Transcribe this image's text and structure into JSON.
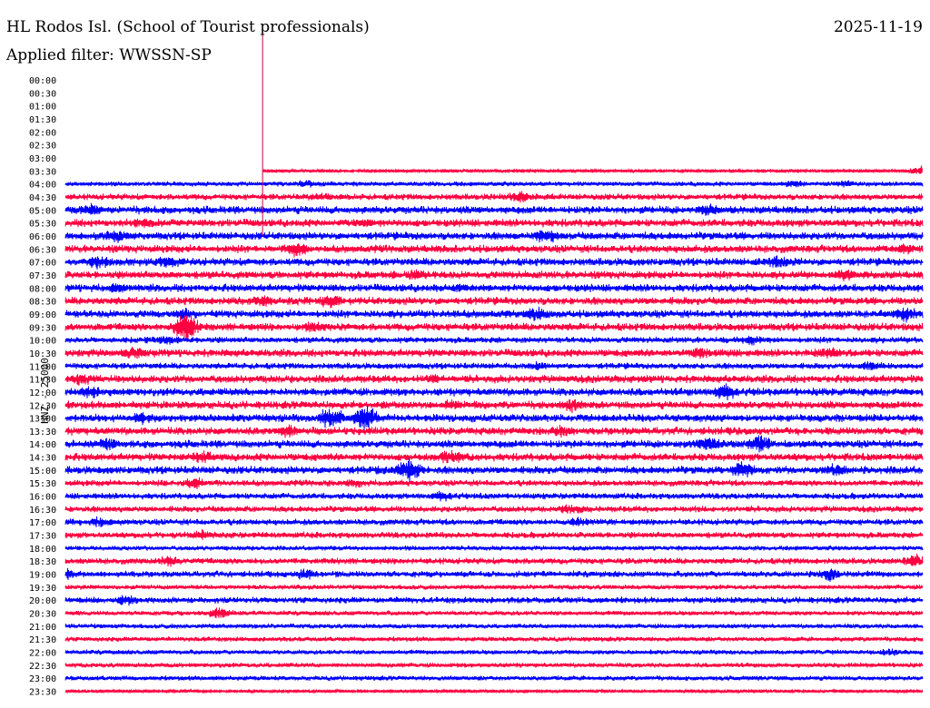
{
  "header": {
    "station": "HL Rodos Isl. (School of Tourist professionals)",
    "date": "2025-11-19",
    "filter": "Applied filter: WWSSN-SP"
  },
  "chart_data": {
    "type": "line",
    "title": "HL Rodos Isl. (School of Tourist professionals)",
    "ylabel": "HNZ - 25000",
    "row_labels": [
      "00:00",
      "00:30",
      "01:00",
      "01:30",
      "02:00",
      "02:30",
      "03:00",
      "03:30",
      "04:00",
      "04:30",
      "05:00",
      "05:30",
      "06:00",
      "06:30",
      "07:00",
      "07:30",
      "08:00",
      "08:30",
      "09:00",
      "09:30",
      "10:00",
      "10:30",
      "11:00",
      "11:30",
      "12:00",
      "12:30",
      "13:00",
      "13:30",
      "14:00",
      "14:30",
      "15:00",
      "15:30",
      "16:00",
      "16:30",
      "17:00",
      "17:30",
      "18:00",
      "18:30",
      "19:00",
      "19:30",
      "20:00",
      "20:30",
      "21:00",
      "21:30",
      "22:00",
      "22:30",
      "23:00",
      "23:30"
    ],
    "data_start_row": "03:30",
    "data_start_fraction": 0.23,
    "colors": {
      "odd": "#ff0040",
      "even": "#0000ff",
      "marker": "#c8004a"
    },
    "rows": [
      {
        "label": "03:30",
        "amplitude": 2,
        "events": [
          {
            "at": 0.0,
            "amp": 6
          },
          {
            "at": 0.998,
            "amp": 6
          }
        ]
      },
      {
        "label": "04:00",
        "amplitude": 3,
        "events": [
          {
            "at": 0.28,
            "amp": 5
          },
          {
            "at": 0.85,
            "amp": 6
          },
          {
            "at": 0.91,
            "amp": 5
          }
        ]
      },
      {
        "label": "04:30",
        "amplitude": 4,
        "events": [
          {
            "at": 0.53,
            "amp": 8
          },
          {
            "at": 0.3,
            "amp": 6
          }
        ]
      },
      {
        "label": "05:00",
        "amplitude": 5,
        "events": [
          {
            "at": 0.03,
            "amp": 8
          },
          {
            "at": 0.75,
            "amp": 8
          }
        ]
      },
      {
        "label": "05:30",
        "amplitude": 5,
        "events": [
          {
            "at": 0.09,
            "amp": 7
          },
          {
            "at": 0.35,
            "amp": 6
          }
        ]
      },
      {
        "label": "06:00",
        "amplitude": 5,
        "events": [
          {
            "at": 0.06,
            "amp": 9
          },
          {
            "at": 0.56,
            "amp": 10
          }
        ]
      },
      {
        "label": "06:30",
        "amplitude": 5,
        "events": [
          {
            "at": 0.27,
            "amp": 10
          },
          {
            "at": 0.98,
            "amp": 8
          }
        ]
      },
      {
        "label": "07:00",
        "amplitude": 5,
        "events": [
          {
            "at": 0.04,
            "amp": 10
          },
          {
            "at": 0.12,
            "amp": 9
          },
          {
            "at": 0.83,
            "amp": 9
          }
        ]
      },
      {
        "label": "07:30",
        "amplitude": 5,
        "events": [
          {
            "at": 0.41,
            "amp": 8
          },
          {
            "at": 0.91,
            "amp": 8
          }
        ]
      },
      {
        "label": "08:00",
        "amplitude": 5,
        "events": [
          {
            "at": 0.06,
            "amp": 7
          },
          {
            "at": 0.46,
            "amp": 6
          }
        ]
      },
      {
        "label": "08:30",
        "amplitude": 5,
        "events": [
          {
            "at": 0.23,
            "amp": 8
          },
          {
            "at": 0.31,
            "amp": 10
          }
        ]
      },
      {
        "label": "09:00",
        "amplitude": 5,
        "events": [
          {
            "at": 0.14,
            "amp": 8
          },
          {
            "at": 0.55,
            "amp": 9
          },
          {
            "at": 0.98,
            "amp": 10
          }
        ]
      },
      {
        "label": "09:30",
        "amplitude": 5,
        "events": [
          {
            "at": 0.14,
            "amp": 18
          },
          {
            "at": 0.29,
            "amp": 8
          }
        ]
      },
      {
        "label": "10:00",
        "amplitude": 4,
        "events": [
          {
            "at": 0.12,
            "amp": 7
          },
          {
            "at": 0.8,
            "amp": 7
          }
        ]
      },
      {
        "label": "10:30",
        "amplitude": 5,
        "events": [
          {
            "at": 0.08,
            "amp": 8
          },
          {
            "at": 0.74,
            "amp": 8
          },
          {
            "at": 0.89,
            "amp": 8
          }
        ]
      },
      {
        "label": "11:00",
        "amplitude": 4,
        "events": [
          {
            "at": 0.55,
            "amp": 6
          },
          {
            "at": 0.94,
            "amp": 7
          }
        ]
      },
      {
        "label": "11:30",
        "amplitude": 5,
        "events": [
          {
            "at": 0.02,
            "amp": 8
          },
          {
            "at": 0.43,
            "amp": 6
          }
        ]
      },
      {
        "label": "12:00",
        "amplitude": 5,
        "events": [
          {
            "at": 0.03,
            "amp": 9
          },
          {
            "at": 0.77,
            "amp": 11
          }
        ]
      },
      {
        "label": "12:30",
        "amplitude": 5,
        "events": [
          {
            "at": 0.45,
            "amp": 7
          },
          {
            "at": 0.59,
            "amp": 9
          }
        ]
      },
      {
        "label": "13:00",
        "amplitude": 5,
        "events": [
          {
            "at": 0.09,
            "amp": 8
          },
          {
            "at": 0.31,
            "amp": 14
          },
          {
            "at": 0.35,
            "amp": 16
          }
        ]
      },
      {
        "label": "13:30",
        "amplitude": 5,
        "events": [
          {
            "at": 0.58,
            "amp": 8
          },
          {
            "at": 0.26,
            "amp": 8
          }
        ]
      },
      {
        "label": "14:00",
        "amplitude": 5,
        "events": [
          {
            "at": 0.05,
            "amp": 9
          },
          {
            "at": 0.75,
            "amp": 10
          },
          {
            "at": 0.81,
            "amp": 11
          }
        ]
      },
      {
        "label": "14:30",
        "amplitude": 5,
        "events": [
          {
            "at": 0.16,
            "amp": 9
          },
          {
            "at": 0.45,
            "amp": 10
          }
        ]
      },
      {
        "label": "15:00",
        "amplitude": 5,
        "events": [
          {
            "at": 0.4,
            "amp": 15
          },
          {
            "at": 0.79,
            "amp": 11
          },
          {
            "at": 0.9,
            "amp": 9
          }
        ]
      },
      {
        "label": "15:30",
        "amplitude": 4,
        "events": [
          {
            "at": 0.15,
            "amp": 8
          },
          {
            "at": 0.34,
            "amp": 6
          }
        ]
      },
      {
        "label": "16:00",
        "amplitude": 4,
        "events": [
          {
            "at": 0.44,
            "amp": 7
          }
        ]
      },
      {
        "label": "16:30",
        "amplitude": 4,
        "events": [
          {
            "at": 0.59,
            "amp": 8
          }
        ]
      },
      {
        "label": "17:00",
        "amplitude": 4,
        "events": [
          {
            "at": 0.04,
            "amp": 7
          },
          {
            "at": 0.6,
            "amp": 7
          }
        ]
      },
      {
        "label": "17:30",
        "amplitude": 4,
        "events": [
          {
            "at": 0.16,
            "amp": 7
          }
        ]
      },
      {
        "label": "18:00",
        "amplitude": 3,
        "events": []
      },
      {
        "label": "18:30",
        "amplitude": 4,
        "events": [
          {
            "at": 0.12,
            "amp": 7
          },
          {
            "at": 0.99,
            "amp": 9
          }
        ]
      },
      {
        "label": "19:00",
        "amplitude": 4,
        "events": [
          {
            "at": 0.0,
            "amp": 7
          },
          {
            "at": 0.28,
            "amp": 8
          },
          {
            "at": 0.89,
            "amp": 9
          }
        ]
      },
      {
        "label": "19:30",
        "amplitude": 3,
        "events": []
      },
      {
        "label": "20:00",
        "amplitude": 4,
        "events": [
          {
            "at": 0.07,
            "amp": 7
          }
        ]
      },
      {
        "label": "20:30",
        "amplitude": 3,
        "events": [
          {
            "at": 0.18,
            "amp": 8
          }
        ]
      },
      {
        "label": "21:00",
        "amplitude": 3,
        "events": []
      },
      {
        "label": "21:30",
        "amplitude": 3,
        "events": []
      },
      {
        "label": "22:00",
        "amplitude": 3,
        "events": [
          {
            "at": 0.96,
            "amp": 5
          }
        ]
      },
      {
        "label": "22:30",
        "amplitude": 3,
        "events": []
      },
      {
        "label": "23:00",
        "amplitude": 3,
        "events": []
      },
      {
        "label": "23:30",
        "amplitude": 2,
        "events": []
      }
    ]
  }
}
